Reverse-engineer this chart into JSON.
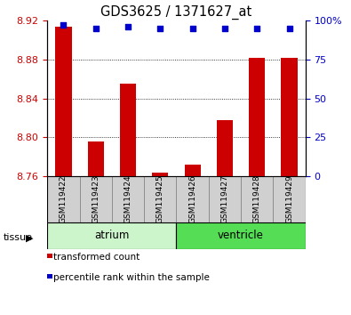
{
  "title": "GDS3625 / 1371627_at",
  "samples": [
    "GSM119422",
    "GSM119423",
    "GSM119424",
    "GSM119425",
    "GSM119426",
    "GSM119427",
    "GSM119428",
    "GSM119429"
  ],
  "transformed_count": [
    8.914,
    8.796,
    8.855,
    8.764,
    8.772,
    8.818,
    8.882,
    8.882
  ],
  "percentile_rank": [
    97,
    95,
    96,
    95,
    95,
    95,
    95,
    95
  ],
  "ylim_left": [
    8.76,
    8.92
  ],
  "ylim_right": [
    0,
    100
  ],
  "yticks_left": [
    8.76,
    8.8,
    8.84,
    8.88,
    8.92
  ],
  "yticks_right": [
    0,
    25,
    50,
    75,
    100
  ],
  "bar_color": "#cc0000",
  "dot_color": "#0000cc",
  "tissue_groups": [
    {
      "label": "atrium",
      "start": 0,
      "end": 3,
      "color": "#ccf5cc"
    },
    {
      "label": "ventricle",
      "start": 4,
      "end": 7,
      "color": "#55dd55"
    }
  ],
  "tick_label_color_left": "#cc0000",
  "tick_label_color_right": "#0000cc",
  "legend_red_label": "transformed count",
  "legend_blue_label": "percentile rank within the sample",
  "tissue_label": "tissue",
  "bar_width": 0.5,
  "sample_box_color": "#d0d0d0",
  "sample_box_edge": "#888888"
}
